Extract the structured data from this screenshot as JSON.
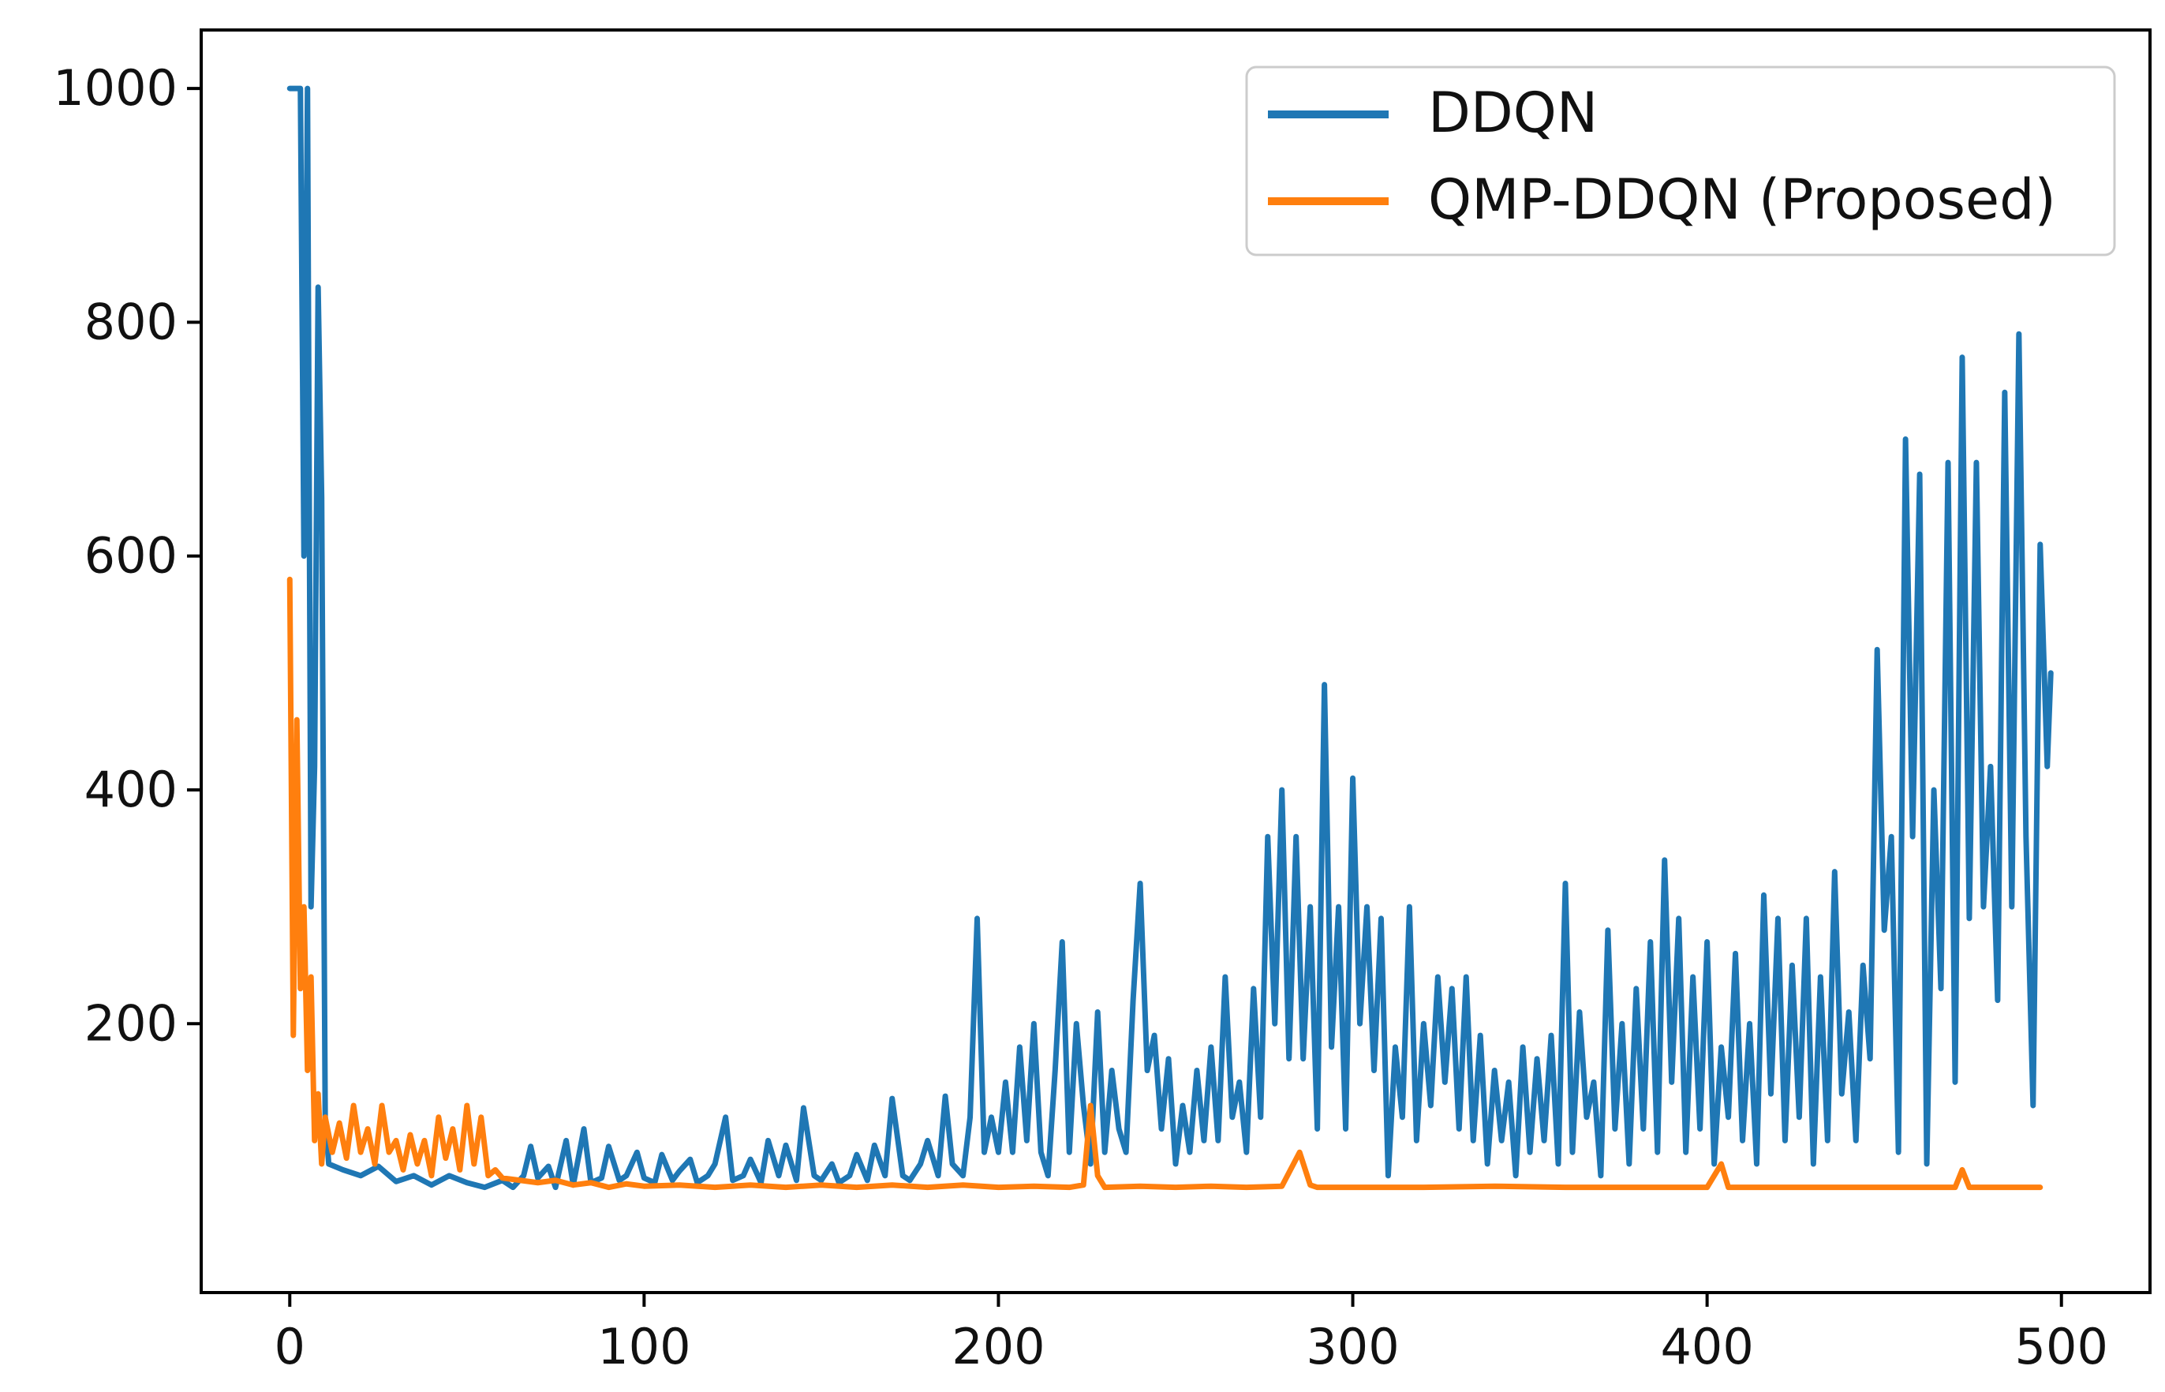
{
  "chart_data": {
    "type": "line",
    "title": "",
    "xlabel": "",
    "ylabel": "",
    "xlim": [
      -25,
      525
    ],
    "ylim": [
      -30,
      1050
    ],
    "grid": false,
    "legend_position": "top-right",
    "x_ticks": [
      0,
      100,
      200,
      300,
      400,
      500
    ],
    "y_ticks": [
      200,
      400,
      600,
      800,
      1000
    ],
    "x_tick_labels": [
      "0",
      "100",
      "200",
      "300",
      "400",
      "500"
    ],
    "y_tick_labels": [
      "200",
      "400",
      "600",
      "800",
      "1000"
    ],
    "series": [
      {
        "name": "DDQN",
        "color": "#1f77b4",
        "points": [
          [
            0,
            1000
          ],
          [
            2,
            1000
          ],
          [
            3,
            1000
          ],
          [
            4,
            600
          ],
          [
            5,
            1000
          ],
          [
            6,
            300
          ],
          [
            7,
            420
          ],
          [
            8,
            830
          ],
          [
            9,
            650
          ],
          [
            10,
            120
          ],
          [
            11,
            80
          ],
          [
            15,
            75
          ],
          [
            20,
            70
          ],
          [
            25,
            78
          ],
          [
            30,
            65
          ],
          [
            35,
            70
          ],
          [
            40,
            62
          ],
          [
            45,
            70
          ],
          [
            50,
            64
          ],
          [
            55,
            60
          ],
          [
            60,
            66
          ],
          [
            63,
            60
          ],
          [
            66,
            70
          ],
          [
            68,
            95
          ],
          [
            70,
            68
          ],
          [
            73,
            78
          ],
          [
            75,
            60
          ],
          [
            78,
            100
          ],
          [
            80,
            62
          ],
          [
            83,
            110
          ],
          [
            85,
            64
          ],
          [
            88,
            68
          ],
          [
            90,
            95
          ],
          [
            93,
            66
          ],
          [
            95,
            70
          ],
          [
            98,
            90
          ],
          [
            100,
            68
          ],
          [
            103,
            64
          ],
          [
            105,
            88
          ],
          [
            108,
            66
          ],
          [
            110,
            74
          ],
          [
            113,
            84
          ],
          [
            115,
            64
          ],
          [
            118,
            70
          ],
          [
            120,
            80
          ],
          [
            123,
            120
          ],
          [
            125,
            66
          ],
          [
            128,
            70
          ],
          [
            130,
            84
          ],
          [
            133,
            64
          ],
          [
            135,
            100
          ],
          [
            138,
            70
          ],
          [
            140,
            96
          ],
          [
            143,
            66
          ],
          [
            145,
            128
          ],
          [
            148,
            70
          ],
          [
            150,
            66
          ],
          [
            153,
            80
          ],
          [
            155,
            64
          ],
          [
            158,
            70
          ],
          [
            160,
            88
          ],
          [
            163,
            66
          ],
          [
            165,
            96
          ],
          [
            168,
            70
          ],
          [
            170,
            136
          ],
          [
            173,
            70
          ],
          [
            175,
            66
          ],
          [
            178,
            80
          ],
          [
            180,
            100
          ],
          [
            183,
            70
          ],
          [
            185,
            138
          ],
          [
            187,
            80
          ],
          [
            190,
            70
          ],
          [
            192,
            120
          ],
          [
            194,
            290
          ],
          [
            196,
            90
          ],
          [
            198,
            120
          ],
          [
            200,
            90
          ],
          [
            202,
            150
          ],
          [
            204,
            90
          ],
          [
            206,
            180
          ],
          [
            208,
            100
          ],
          [
            210,
            200
          ],
          [
            212,
            90
          ],
          [
            214,
            70
          ],
          [
            216,
            160
          ],
          [
            218,
            270
          ],
          [
            220,
            90
          ],
          [
            222,
            200
          ],
          [
            224,
            130
          ],
          [
            226,
            80
          ],
          [
            228,
            210
          ],
          [
            230,
            90
          ],
          [
            232,
            160
          ],
          [
            234,
            110
          ],
          [
            236,
            90
          ],
          [
            238,
            220
          ],
          [
            240,
            320
          ],
          [
            242,
            160
          ],
          [
            244,
            190
          ],
          [
            246,
            110
          ],
          [
            248,
            170
          ],
          [
            250,
            80
          ],
          [
            252,
            130
          ],
          [
            254,
            90
          ],
          [
            256,
            160
          ],
          [
            258,
            100
          ],
          [
            260,
            180
          ],
          [
            262,
            100
          ],
          [
            264,
            240
          ],
          [
            266,
            120
          ],
          [
            268,
            150
          ],
          [
            270,
            90
          ],
          [
            272,
            230
          ],
          [
            274,
            120
          ],
          [
            276,
            360
          ],
          [
            278,
            200
          ],
          [
            280,
            400
          ],
          [
            282,
            170
          ],
          [
            284,
            360
          ],
          [
            286,
            170
          ],
          [
            288,
            300
          ],
          [
            290,
            110
          ],
          [
            292,
            490
          ],
          [
            294,
            180
          ],
          [
            296,
            300
          ],
          [
            298,
            110
          ],
          [
            300,
            410
          ],
          [
            302,
            200
          ],
          [
            304,
            300
          ],
          [
            306,
            160
          ],
          [
            308,
            290
          ],
          [
            310,
            70
          ],
          [
            312,
            180
          ],
          [
            314,
            120
          ],
          [
            316,
            300
          ],
          [
            318,
            100
          ],
          [
            320,
            200
          ],
          [
            322,
            130
          ],
          [
            324,
            240
          ],
          [
            326,
            150
          ],
          [
            328,
            230
          ],
          [
            330,
            110
          ],
          [
            332,
            240
          ],
          [
            334,
            100
          ],
          [
            336,
            190
          ],
          [
            338,
            80
          ],
          [
            340,
            160
          ],
          [
            342,
            100
          ],
          [
            344,
            150
          ],
          [
            346,
            70
          ],
          [
            348,
            180
          ],
          [
            350,
            90
          ],
          [
            352,
            170
          ],
          [
            354,
            100
          ],
          [
            356,
            190
          ],
          [
            358,
            80
          ],
          [
            360,
            320
          ],
          [
            362,
            90
          ],
          [
            364,
            210
          ],
          [
            366,
            120
          ],
          [
            368,
            150
          ],
          [
            370,
            70
          ],
          [
            372,
            280
          ],
          [
            374,
            110
          ],
          [
            376,
            200
          ],
          [
            378,
            80
          ],
          [
            380,
            230
          ],
          [
            382,
            110
          ],
          [
            384,
            270
          ],
          [
            386,
            90
          ],
          [
            388,
            340
          ],
          [
            390,
            150
          ],
          [
            392,
            290
          ],
          [
            394,
            90
          ],
          [
            396,
            240
          ],
          [
            398,
            110
          ],
          [
            400,
            270
          ],
          [
            402,
            80
          ],
          [
            404,
            180
          ],
          [
            406,
            120
          ],
          [
            408,
            260
          ],
          [
            410,
            100
          ],
          [
            412,
            200
          ],
          [
            414,
            80
          ],
          [
            416,
            310
          ],
          [
            418,
            140
          ],
          [
            420,
            290
          ],
          [
            422,
            100
          ],
          [
            424,
            250
          ],
          [
            426,
            120
          ],
          [
            428,
            290
          ],
          [
            430,
            80
          ],
          [
            432,
            240
          ],
          [
            434,
            100
          ],
          [
            436,
            330
          ],
          [
            438,
            140
          ],
          [
            440,
            210
          ],
          [
            442,
            100
          ],
          [
            444,
            250
          ],
          [
            446,
            170
          ],
          [
            448,
            520
          ],
          [
            450,
            280
          ],
          [
            452,
            360
          ],
          [
            454,
            90
          ],
          [
            456,
            700
          ],
          [
            458,
            360
          ],
          [
            460,
            670
          ],
          [
            462,
            80
          ],
          [
            464,
            400
          ],
          [
            466,
            230
          ],
          [
            468,
            680
          ],
          [
            470,
            150
          ],
          [
            472,
            770
          ],
          [
            474,
            290
          ],
          [
            476,
            680
          ],
          [
            478,
            300
          ],
          [
            480,
            420
          ],
          [
            482,
            220
          ],
          [
            484,
            740
          ],
          [
            486,
            300
          ],
          [
            488,
            790
          ],
          [
            490,
            360
          ],
          [
            492,
            130
          ],
          [
            494,
            610
          ],
          [
            496,
            420
          ],
          [
            497,
            500
          ]
        ]
      },
      {
        "name": "QMP-DDQN (Proposed)",
        "color": "#ff7f0e",
        "points": [
          [
            0,
            580
          ],
          [
            1,
            190
          ],
          [
            2,
            460
          ],
          [
            3,
            230
          ],
          [
            4,
            300
          ],
          [
            5,
            160
          ],
          [
            6,
            240
          ],
          [
            7,
            100
          ],
          [
            8,
            140
          ],
          [
            9,
            80
          ],
          [
            10,
            120
          ],
          [
            12,
            90
          ],
          [
            14,
            115
          ],
          [
            16,
            85
          ],
          [
            18,
            130
          ],
          [
            20,
            90
          ],
          [
            22,
            110
          ],
          [
            24,
            80
          ],
          [
            26,
            130
          ],
          [
            28,
            90
          ],
          [
            30,
            100
          ],
          [
            32,
            75
          ],
          [
            34,
            105
          ],
          [
            36,
            80
          ],
          [
            38,
            100
          ],
          [
            40,
            70
          ],
          [
            42,
            120
          ],
          [
            44,
            85
          ],
          [
            46,
            110
          ],
          [
            48,
            75
          ],
          [
            50,
            130
          ],
          [
            52,
            80
          ],
          [
            54,
            120
          ],
          [
            56,
            70
          ],
          [
            58,
            75
          ],
          [
            60,
            68
          ],
          [
            65,
            66
          ],
          [
            70,
            64
          ],
          [
            75,
            66
          ],
          [
            80,
            62
          ],
          [
            85,
            64
          ],
          [
            90,
            60
          ],
          [
            95,
            63
          ],
          [
            100,
            61
          ],
          [
            110,
            62
          ],
          [
            120,
            60
          ],
          [
            130,
            62
          ],
          [
            140,
            60
          ],
          [
            150,
            62
          ],
          [
            160,
            60
          ],
          [
            170,
            62
          ],
          [
            180,
            60
          ],
          [
            190,
            62
          ],
          [
            200,
            60
          ],
          [
            210,
            61
          ],
          [
            220,
            60
          ],
          [
            224,
            62
          ],
          [
            226,
            130
          ],
          [
            228,
            70
          ],
          [
            230,
            60
          ],
          [
            240,
            61
          ],
          [
            250,
            60
          ],
          [
            260,
            61
          ],
          [
            270,
            60
          ],
          [
            280,
            61
          ],
          [
            285,
            90
          ],
          [
            288,
            62
          ],
          [
            290,
            60
          ],
          [
            300,
            60
          ],
          [
            320,
            60
          ],
          [
            340,
            61
          ],
          [
            360,
            60
          ],
          [
            380,
            60
          ],
          [
            400,
            60
          ],
          [
            404,
            80
          ],
          [
            406,
            60
          ],
          [
            420,
            60
          ],
          [
            440,
            60
          ],
          [
            460,
            60
          ],
          [
            470,
            60
          ],
          [
            472,
            75
          ],
          [
            474,
            60
          ],
          [
            480,
            60
          ],
          [
            490,
            60
          ],
          [
            494,
            60
          ]
        ]
      }
    ]
  }
}
